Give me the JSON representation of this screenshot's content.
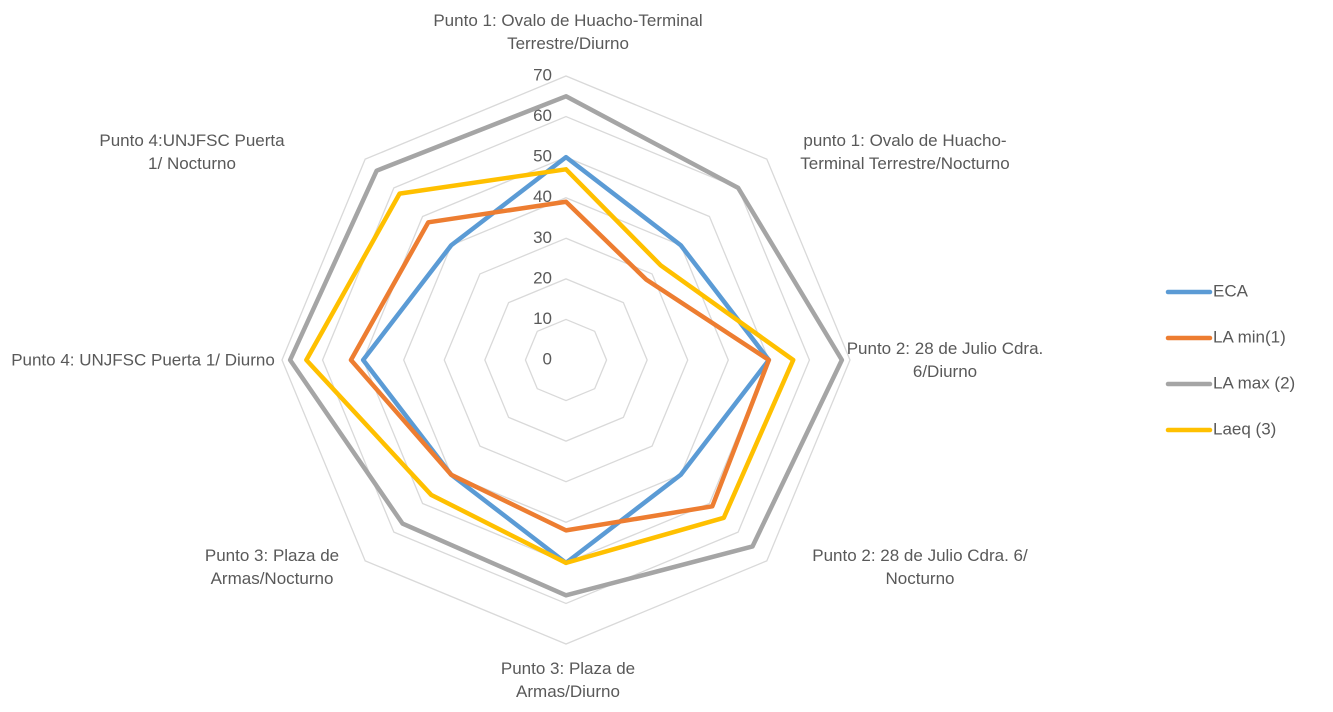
{
  "chart_data": {
    "type": "radar",
    "categories": [
      "Punto 1: Ovalo de Huacho-Terminal Terrestre/Diurno",
      "punto 1: Ovalo de Huacho-Terminal Terrestre/Nocturno",
      "Punto 2: 28 de Julio Cdra. 6/Diurno",
      "Punto 2: 28 de Julio Cdra. 6/ Nocturno",
      "Punto 3: Plaza de Armas/Diurno",
      "Punto 3: Plaza de Armas/Nocturno",
      "Punto 4: UNJFSC Puerta 1/ Diurno",
      "Punto 4:UNJFSC Puerta 1/ Nocturno"
    ],
    "series": [
      {
        "name": "ECA",
        "color": "#5b9bd5",
        "values": [
          50,
          40,
          50,
          40,
          50,
          40,
          50,
          40
        ]
      },
      {
        "name": "LA min(1)",
        "color": "#ed7d31",
        "values": [
          39,
          28,
          50,
          51,
          42,
          40,
          53,
          48
        ]
      },
      {
        "name": "LA max (2)",
        "color": "#a5a5a5",
        "values": [
          65,
          60,
          68,
          65,
          58,
          57,
          68,
          66
        ]
      },
      {
        "name": "Laeq (3)",
        "color": "#ffc000",
        "values": [
          47,
          33,
          56,
          55,
          50,
          47,
          64,
          58
        ]
      }
    ],
    "ylim": [
      0,
      70
    ],
    "yticks": [
      0,
      10,
      20,
      30,
      40,
      50,
      60,
      70
    ],
    "grid": true,
    "legend": "right"
  }
}
